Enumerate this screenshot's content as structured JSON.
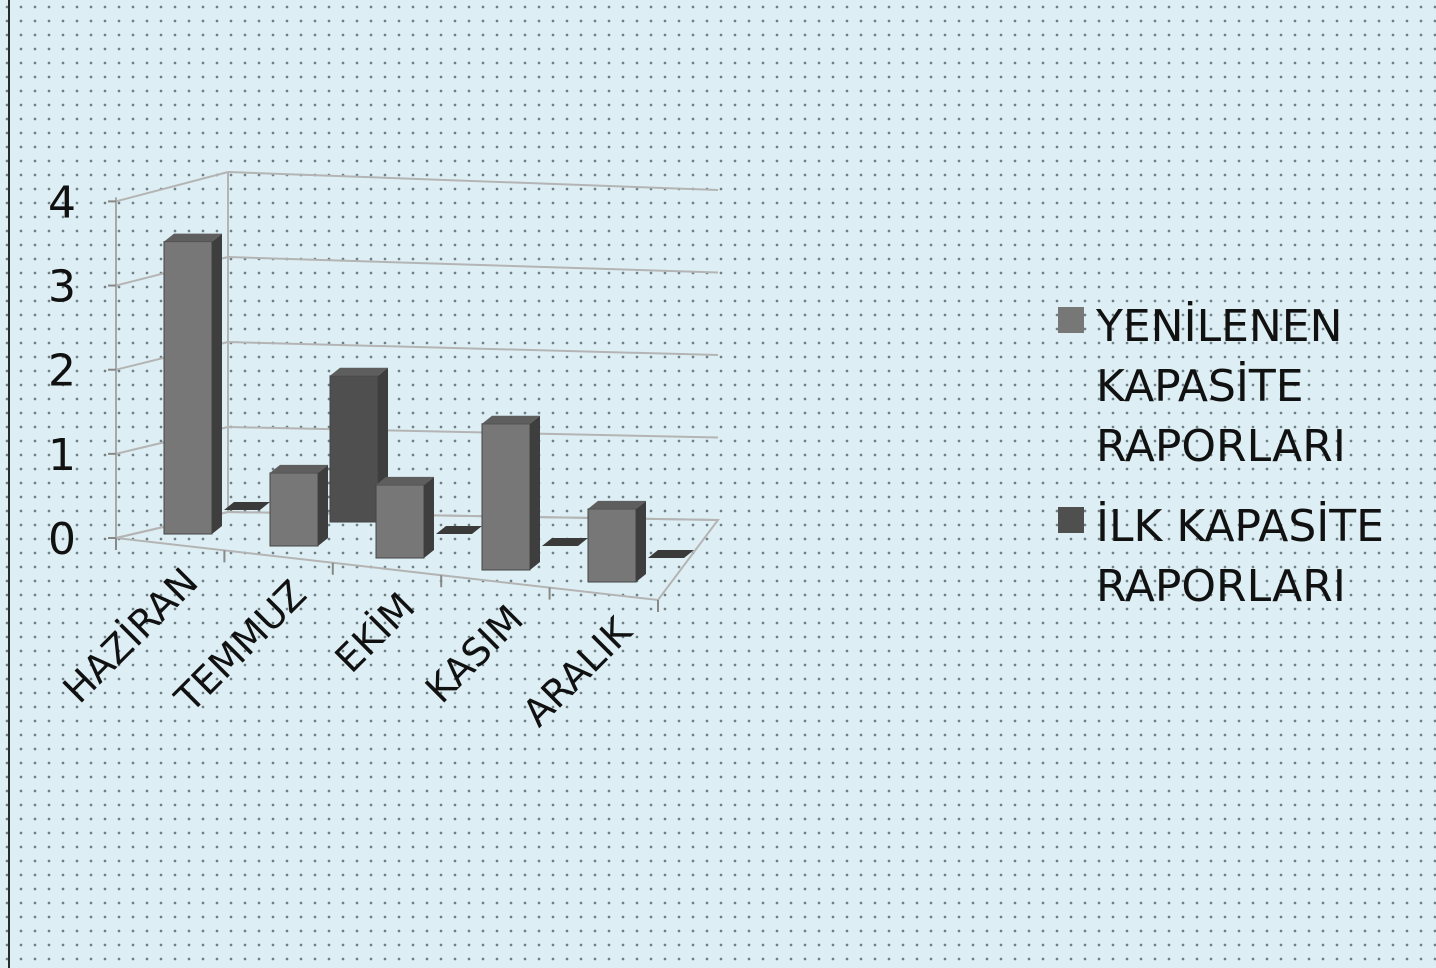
{
  "chart_data": {
    "type": "bar",
    "categories": [
      "HAZİRAN",
      "TEMMUZ",
      "EKİM",
      "KASIM",
      "ARALIK"
    ],
    "series": [
      {
        "name": "YENİLENEN KAPASİTE RAPORLARI",
        "values": [
          4,
          1,
          1,
          2,
          1
        ],
        "color": "#777777"
      },
      {
        "name": "İLK KAPASİTE RAPORLARI",
        "values": [
          0,
          2,
          0,
          0,
          0
        ],
        "color": "#4f4f4f"
      }
    ],
    "ylim": [
      0,
      4
    ],
    "yticks": [
      "0",
      "1",
      "2",
      "3",
      "4"
    ],
    "grid": true,
    "legend_position": "right",
    "title": "",
    "xlabel": "",
    "ylabel": ""
  }
}
